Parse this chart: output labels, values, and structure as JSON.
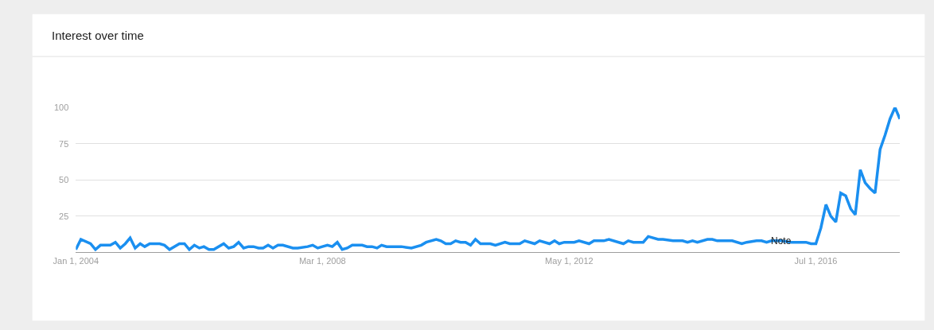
{
  "chart_data": {
    "type": "line",
    "title": "Interest over time",
    "x": [
      "2004-01",
      "2004-02",
      "2004-04",
      "2004-05",
      "2004-06",
      "2004-08",
      "2004-09",
      "2004-10",
      "2004-11",
      "2004-12",
      "2005-01",
      "2005-02",
      "2005-03",
      "2005-04",
      "2005-06",
      "2005-07",
      "2005-08",
      "2005-10",
      "2005-11",
      "2005-12",
      "2006-01",
      "2006-02",
      "2006-03",
      "2006-04",
      "2006-05",
      "2006-07",
      "2006-08",
      "2006-09",
      "2006-10",
      "2006-11",
      "2006-12",
      "2007-01",
      "2007-02",
      "2007-03",
      "2007-04",
      "2007-05",
      "2007-06",
      "2007-07",
      "2007-09",
      "2007-10",
      "2007-12",
      "2008-01",
      "2008-02",
      "2008-03",
      "2008-04",
      "2008-05",
      "2008-06",
      "2008-07",
      "2008-08",
      "2008-09",
      "2008-11",
      "2008-12",
      "2009-01",
      "2009-02",
      "2009-03",
      "2009-04",
      "2009-05",
      "2009-07",
      "2009-09",
      "2009-11",
      "2009-12",
      "2010-02",
      "2010-03",
      "2010-04",
      "2010-05",
      "2010-06",
      "2010-07",
      "2010-08",
      "2010-09",
      "2010-10",
      "2010-11",
      "2011-01",
      "2011-02",
      "2011-04",
      "2011-05",
      "2011-07",
      "2011-08",
      "2011-10",
      "2011-11",
      "2012-01",
      "2012-02",
      "2012-03",
      "2012-04",
      "2012-06",
      "2012-07",
      "2012-09",
      "2012-10",
      "2012-12",
      "2013-01",
      "2013-04",
      "2013-05",
      "2013-06",
      "2013-08",
      "2013-09",
      "2013-11",
      "2013-12",
      "2014-02",
      "2014-04",
      "2014-05",
      "2014-06",
      "2014-07",
      "2014-09",
      "2014-10",
      "2014-11",
      "2015-02",
      "2015-04",
      "2015-05",
      "2015-07",
      "2015-08",
      "2015-09",
      "2015-10",
      "2015-12",
      "2016-02",
      "2016-03",
      "2016-05",
      "2016-06",
      "2016-07",
      "2016-08",
      "2016-09",
      "2016-10",
      "2016-11",
      "2016-12",
      "2017-01",
      "2017-02",
      "2017-03",
      "2017-04",
      "2017-05",
      "2017-06",
      "2017-07",
      "2017-08",
      "2017-09",
      "2017-10",
      "2017-11",
      "2017-12"
    ],
    "series": [
      {
        "color": "#1a8ff0",
        "values": [
          2,
          9,
          6,
          2,
          5,
          5,
          7,
          3,
          6,
          10,
          3,
          6,
          4,
          6,
          6,
          5,
          2,
          6,
          6,
          2,
          5,
          3,
          4,
          2,
          2,
          6,
          3,
          4,
          7,
          3,
          4,
          4,
          3,
          3,
          5,
          3,
          5,
          5,
          3,
          3,
          4,
          5,
          3,
          4,
          5,
          4,
          7,
          2,
          3,
          5,
          5,
          4,
          4,
          3,
          5,
          4,
          4,
          4,
          3,
          5,
          7,
          9,
          8,
          6,
          6,
          8,
          7,
          7,
          5,
          9,
          6,
          6,
          5,
          7,
          6,
          6,
          8,
          6,
          8,
          6,
          8,
          6,
          7,
          7,
          8,
          6,
          8,
          8,
          9,
          6,
          8,
          7,
          7,
          11,
          9,
          9,
          8,
          8,
          7,
          8,
          7,
          9,
          9,
          8,
          8,
          6,
          7,
          8,
          8,
          7,
          8,
          8,
          7,
          7,
          7,
          6,
          6,
          17,
          33,
          25,
          21,
          41,
          39,
          30,
          26,
          57,
          48,
          44,
          41,
          71,
          81,
          92,
          100,
          92
        ]
      }
    ],
    "xlim": [
      "2004-01-01",
      "2017-12-01"
    ],
    "xticks": [
      {
        "value": "2004-01-01",
        "label": "Jan 1, 2004"
      },
      {
        "value": "2008-03-01",
        "label": "Mar 1, 2008"
      },
      {
        "value": "2012-05-01",
        "label": "May 1, 2012"
      },
      {
        "value": "2016-07-01",
        "label": "Jul 1, 2016"
      }
    ],
    "ylim": [
      0,
      100
    ],
    "yticks": [
      {
        "value": 0,
        "label": null
      },
      25,
      50,
      75,
      100
    ],
    "grid": "y",
    "annotations": [
      {
        "text": "Note",
        "x": "2015-12",
        "y": 8
      }
    ]
  }
}
